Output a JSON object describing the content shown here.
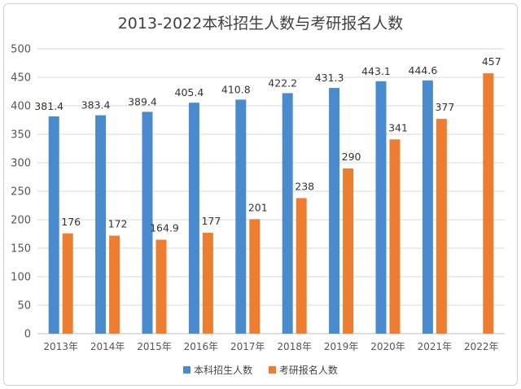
{
  "colors": {
    "series1": "#4A8BD0",
    "series2": "#ED7D31",
    "grid": "#d9d9d9"
  },
  "chart_data": {
    "type": "bar",
    "title": "2013-2022本科招生人数与考研报名人数",
    "xlabel": "",
    "ylabel": "",
    "ylim": [
      0,
      500
    ],
    "yticks": [
      0,
      50,
      100,
      150,
      200,
      250,
      300,
      350,
      400,
      450,
      500
    ],
    "grid": true,
    "legend": "bottom",
    "categories": [
      "2013年",
      "2014年",
      "2015年",
      "2016年",
      "2017年",
      "2018年",
      "2019年",
      "2020年",
      "2021年",
      "2022年"
    ],
    "series": [
      {
        "name": "本科招生人数",
        "values": [
          381.4,
          383.4,
          389.4,
          405.4,
          410.8,
          422.2,
          431.3,
          443.1,
          444.6,
          null
        ],
        "labels": [
          "381.4",
          "383.4",
          "389.4",
          "405.4",
          "410.8",
          "422.2",
          "431.3",
          "443.1",
          "444.6",
          ""
        ]
      },
      {
        "name": "考研报名人数",
        "values": [
          176,
          172,
          164.9,
          177,
          201,
          238,
          290,
          341,
          377,
          457
        ],
        "labels": [
          "176",
          "172",
          "164.9",
          "177",
          "201",
          "238",
          "290",
          "341",
          "377",
          "457"
        ]
      }
    ]
  }
}
